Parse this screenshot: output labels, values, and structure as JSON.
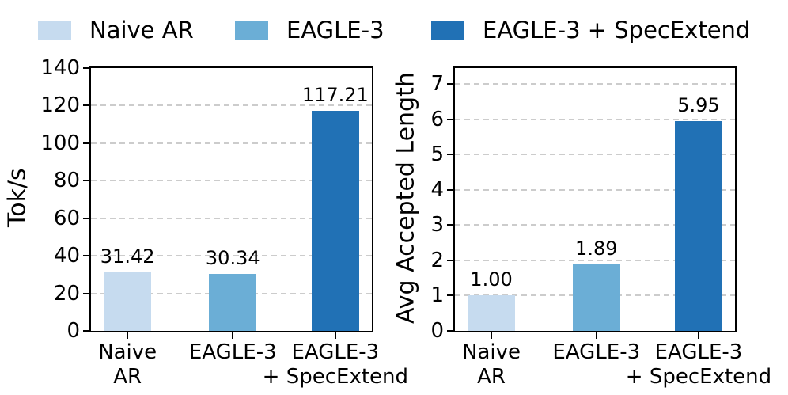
{
  "legend": {
    "position": "top",
    "entries": [
      {
        "label": "Naive AR",
        "color": "#c6dbef"
      },
      {
        "label": "EAGLE-3",
        "color": "#6baed6"
      },
      {
        "label": "EAGLE-3 + SpecExtend",
        "color": "#2171b5"
      }
    ]
  },
  "chart_data": [
    {
      "type": "bar",
      "ylabel": "Tok/s",
      "xlabel": "",
      "categories": [
        "Naive\nAR",
        "EAGLE-3",
        "EAGLE-3\n+ SpecExtend"
      ],
      "values": [
        31.42,
        30.34,
        117.21
      ],
      "value_labels": [
        "31.42",
        "30.34",
        "117.21"
      ],
      "bar_colors": [
        "#c6dbef",
        "#6baed6",
        "#2171b5"
      ],
      "yticks": [
        0,
        20,
        40,
        60,
        80,
        100,
        120,
        140
      ],
      "ylim": [
        0,
        140
      ],
      "grid": "horizontal-dashed",
      "grid_color": "#cccccc"
    },
    {
      "type": "bar",
      "ylabel": "Avg Accepted Length",
      "xlabel": "",
      "categories": [
        "Naive\nAR",
        "EAGLE-3",
        "EAGLE-3\n+ SpecExtend"
      ],
      "values": [
        1.0,
        1.89,
        5.95
      ],
      "value_labels": [
        "1.00",
        "1.89",
        "5.95"
      ],
      "bar_colors": [
        "#c6dbef",
        "#6baed6",
        "#2171b5"
      ],
      "yticks": [
        0,
        1,
        2,
        3,
        4,
        5,
        6,
        7
      ],
      "ylim": [
        0,
        7.45
      ],
      "grid": "horizontal-dashed",
      "grid_color": "#cccccc"
    }
  ]
}
